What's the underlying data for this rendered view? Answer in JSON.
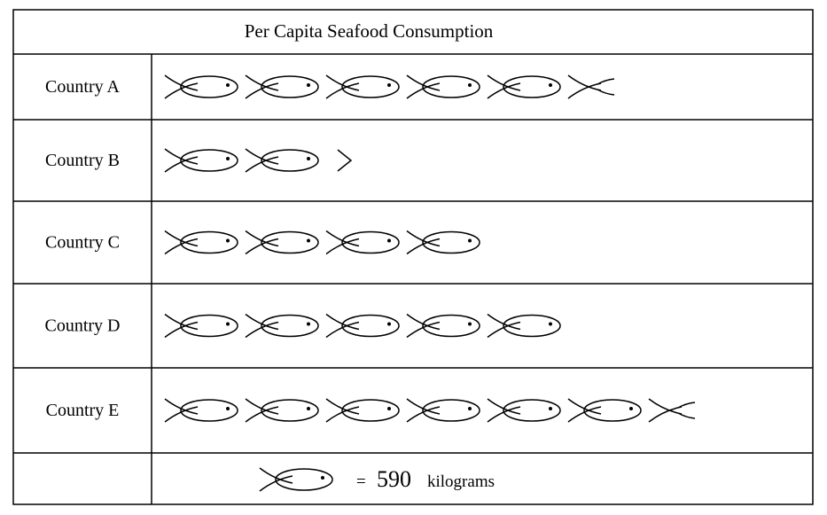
{
  "chart_data": {
    "type": "table",
    "title": "Per Capita Seafood Consumption",
    "categories": [
      "Country A",
      "Country B",
      "Country C",
      "Country D",
      "Country E"
    ],
    "symbols": [
      5.5,
      2.5,
      4,
      5,
      6.5
    ],
    "values": [
      3245,
      1475,
      2360,
      2950,
      3835
    ],
    "key": {
      "symbol_count": 1,
      "value": 590,
      "unit": "kilograms",
      "equals_prefix": "=",
      "number_text": "590",
      "unit_text": "kilograms"
    },
    "grid": true
  },
  "colors": {
    "line": "#000000",
    "background": "#ffffff"
  },
  "icons": {
    "symbol": "fish-icon"
  }
}
